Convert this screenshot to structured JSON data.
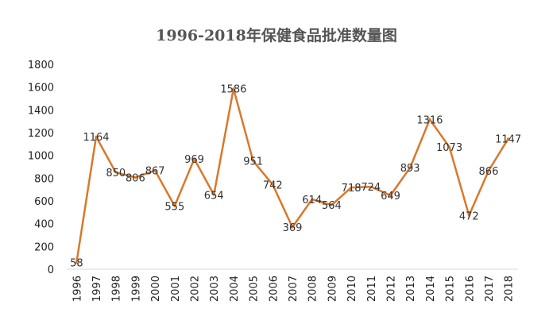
{
  "chart_data": {
    "type": "line",
    "title": "1996-2018年保健食品批准数量图",
    "xlabel": "",
    "ylabel": "",
    "ylim": [
      0,
      1800
    ],
    "yticks": [
      0,
      200,
      400,
      600,
      800,
      1000,
      1200,
      1400,
      1600,
      1800
    ],
    "grid": false,
    "legend": "none",
    "line_color": "#D9782B",
    "categories": [
      "1996",
      "1997",
      "1998",
      "1999",
      "2000",
      "2001",
      "2002",
      "2003",
      "2004",
      "2005",
      "2006",
      "2007",
      "2008",
      "2009",
      "2010",
      "2011",
      "2012",
      "2013",
      "2014",
      "2015",
      "2016",
      "2017",
      "2018"
    ],
    "series": [
      {
        "name": "批准数量",
        "values": [
          58,
          1164,
          850,
          806,
          867,
          555,
          969,
          654,
          1586,
          951,
          742,
          369,
          614,
          564,
          718,
          724,
          649,
          893,
          1316,
          1073,
          472,
          866,
          1147
        ]
      }
    ]
  }
}
